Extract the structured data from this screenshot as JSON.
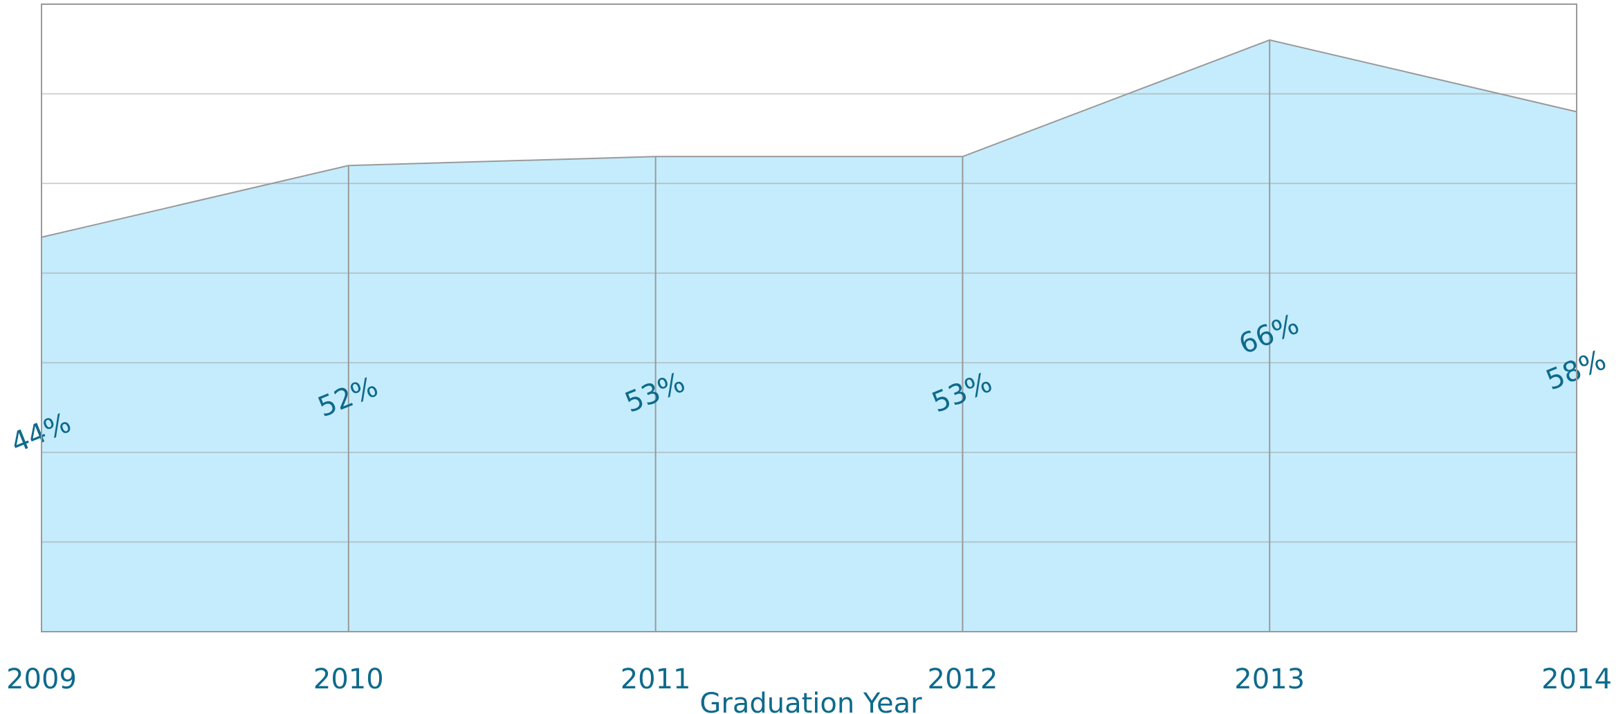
{
  "chart_data": {
    "type": "area",
    "x_label": "Graduation Year",
    "categories": [
      "2009",
      "2010",
      "2011",
      "2012",
      "2013",
      "2014"
    ],
    "values": [
      44,
      52,
      53,
      53,
      66,
      58
    ],
    "value_labels": [
      "44%",
      "52%",
      "53%",
      "53%",
      "66%",
      "58%"
    ],
    "color": "#c5ecfc",
    "ylim": [
      0,
      70
    ],
    "yticks": [
      0,
      10,
      20,
      30,
      40,
      50,
      60,
      70
    ],
    "grid": true
  }
}
